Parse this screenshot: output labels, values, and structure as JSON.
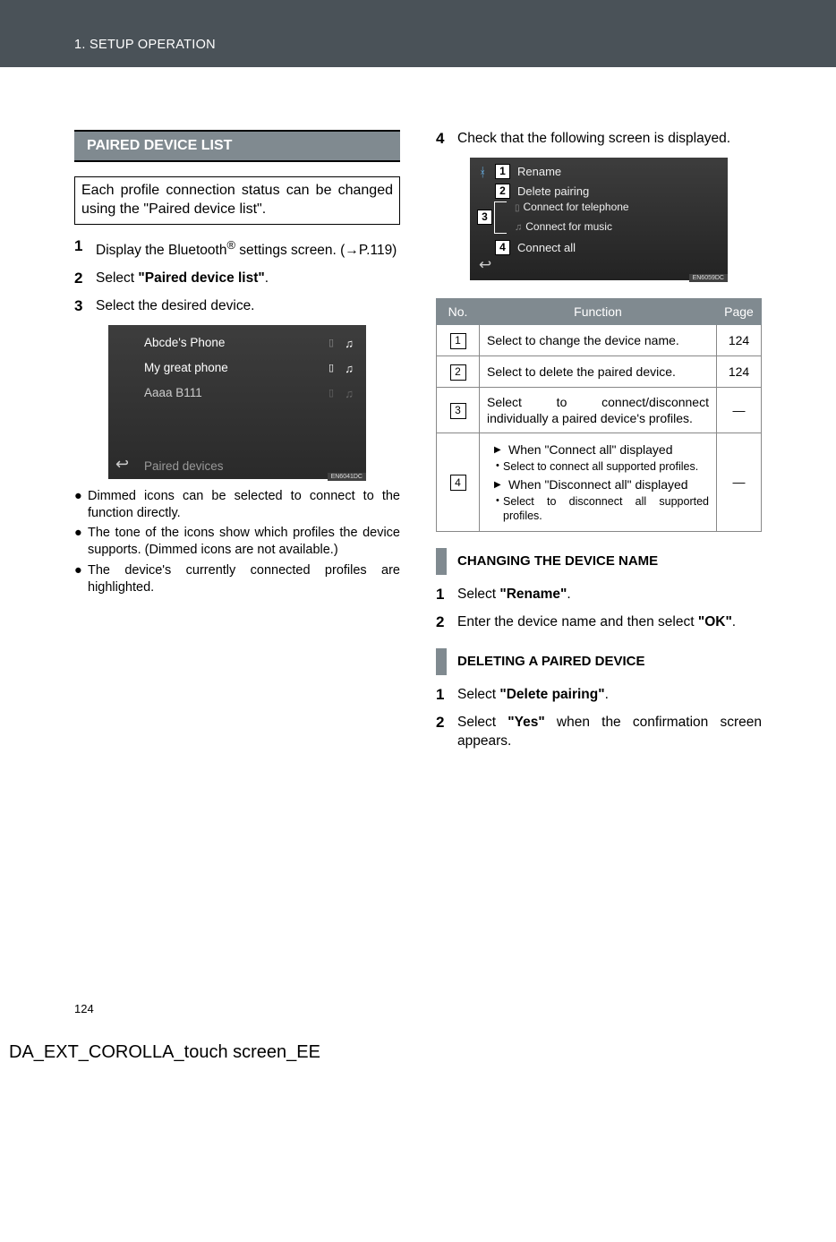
{
  "header": {
    "section_label": "1. SETUP OPERATION"
  },
  "left_col": {
    "section_title": "PAIRED DEVICE LIST",
    "frame_text": "Each profile connection status can be changed using the \"Paired device list\".",
    "steps": [
      {
        "num": "1",
        "html": "Display the Bluetooth<sup>®</sup> settings screen. (→P.119)"
      },
      {
        "num": "2",
        "html": "Select <b>\"Paired device list\"</b>."
      },
      {
        "num": "3",
        "html": "Select the desired device."
      }
    ],
    "screenshot1": {
      "rows": [
        {
          "label": "Abcde's Phone",
          "phone_on": false,
          "music_on": true
        },
        {
          "label": "My great phone",
          "phone_on": true,
          "music_on": true
        },
        {
          "label": "Aaaa B111",
          "phone_on": false,
          "music_on": false
        }
      ],
      "footer": "Paired devices",
      "tag": "EN6041DC"
    },
    "bullets": [
      "Dimmed icons can be selected to connect to the function directly.",
      "The tone of the icons show which profiles the device supports. (Dimmed icons are not available.)",
      "The device's currently connected profiles are highlighted."
    ]
  },
  "right_col": {
    "step4": {
      "num": "4",
      "html": "Check that the following screen is displayed."
    },
    "screenshot2": {
      "bt_icon": "bluetooth",
      "items": [
        {
          "n": "1",
          "label": "Rename"
        },
        {
          "n": "2",
          "label": "Delete pairing"
        }
      ],
      "group3": {
        "n": "3",
        "a_label": "Connect for telephone",
        "b_label": "Connect for music"
      },
      "item4": {
        "n": "4",
        "label": "Connect all"
      },
      "tag": "EN6059DC"
    },
    "table": {
      "headers": [
        "No.",
        "Function",
        "Page"
      ],
      "rows": [
        {
          "n": "1",
          "func_html": "Select to change the device name.",
          "page": "124"
        },
        {
          "n": "2",
          "func_html": "Select to delete the paired device.",
          "page": "124"
        },
        {
          "n": "3",
          "func_html": "Select to connect/disconnect individually a paired device's profiles.",
          "page": "—"
        },
        {
          "n": "4",
          "arrow_a": "When \"Connect all\" displayed",
          "dot_a": "Select to connect all supported profiles.",
          "arrow_b": "When \"Disconnect all\" displayed",
          "dot_b": "Select to disconnect all supported profiles.",
          "page": "—"
        }
      ]
    },
    "sub_section_a": {
      "title": "CHANGING THE DEVICE NAME",
      "steps": [
        {
          "num": "1",
          "html": "Select <b>\"Rename\"</b>."
        },
        {
          "num": "2",
          "html": "Enter the device name and then select <b>\"OK\"</b>."
        }
      ]
    },
    "sub_section_b": {
      "title": "DELETING A PAIRED DEVICE",
      "steps": [
        {
          "num": "1",
          "html": "Select <b>\"Delete pairing\"</b>."
        },
        {
          "num": "2",
          "html": "Select <b>\"Yes\"</b> when the confirmation screen appears."
        }
      ]
    }
  },
  "page_number": "124",
  "doc_title": "DA_EXT_COROLLA_touch screen_EE"
}
